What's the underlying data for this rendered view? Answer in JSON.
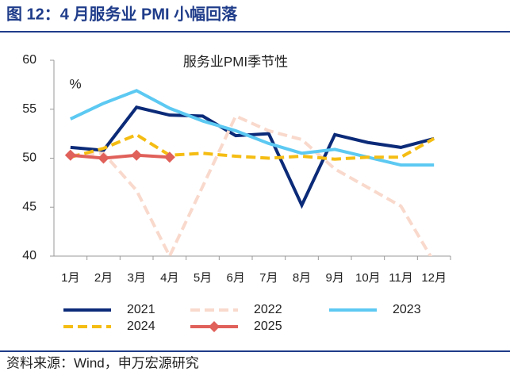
{
  "header": {
    "title": "图 12：4 月服务业 PMI 小幅回落"
  },
  "source": "资料来源：Wind，申万宏源研究",
  "chart_data": {
    "type": "line",
    "title": "服务业PMI季节性",
    "y_label": "%",
    "categories": [
      "1月",
      "2月",
      "3月",
      "4月",
      "5月",
      "6月",
      "7月",
      "8月",
      "9月",
      "10月",
      "11月",
      "12月"
    ],
    "ylim": [
      40,
      60
    ],
    "yticks": [
      40,
      45,
      50,
      55,
      60
    ],
    "series": [
      {
        "name": "2021",
        "color": "#0b2a78",
        "dash": false,
        "values": [
          51.1,
          50.8,
          55.2,
          54.4,
          54.3,
          52.3,
          52.5,
          45.2,
          52.4,
          51.6,
          51.1,
          52.0
        ]
      },
      {
        "name": "2022",
        "color": "#f9d9cc",
        "dash": true,
        "values": [
          50.3,
          50.5,
          46.7,
          40.0,
          47.1,
          54.3,
          52.8,
          51.9,
          48.9,
          47.0,
          45.1,
          39.4
        ]
      },
      {
        "name": "2023",
        "color": "#5cc9f2",
        "dash": false,
        "values": [
          54.0,
          55.6,
          56.9,
          55.1,
          53.8,
          52.8,
          51.5,
          50.5,
          50.9,
          50.1,
          49.3,
          49.3
        ]
      },
      {
        "name": "2024",
        "color": "#f5bd13",
        "dash": true,
        "values": [
          50.1,
          51.0,
          52.4,
          50.3,
          50.5,
          50.2,
          50.0,
          50.2,
          49.9,
          50.1,
          50.1,
          52.0
        ]
      },
      {
        "name": "2025",
        "color": "#e0605a",
        "dash": false,
        "marker": "diamond",
        "values": [
          50.3,
          50.0,
          50.3,
          50.1,
          null,
          null,
          null,
          null,
          null,
          null,
          null,
          null
        ]
      }
    ]
  }
}
